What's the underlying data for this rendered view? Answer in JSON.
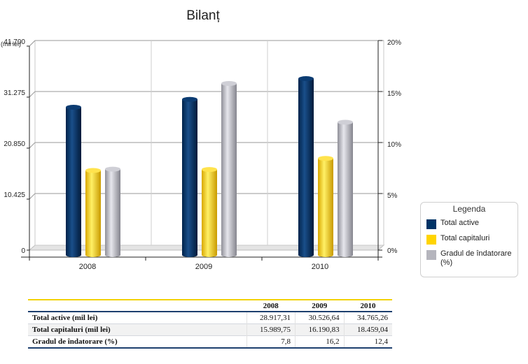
{
  "chart_data": {
    "type": "bar",
    "title": "Bilanț",
    "unit_label": "(mil lei)",
    "categories": [
      "2008",
      "2009",
      "2010"
    ],
    "y_left": {
      "ticks": [
        "0",
        "10.425",
        "20.850",
        "31.275",
        "41.700"
      ],
      "range": [
        0,
        41700
      ]
    },
    "y_right": {
      "ticks": [
        "0%",
        "5%",
        "10%",
        "15%",
        "20%"
      ],
      "range": [
        0,
        20
      ]
    },
    "grid": true,
    "legend_position": "right",
    "series": [
      {
        "name": "Total active",
        "axis": "left",
        "color": "#003366",
        "values": [
          28917.31,
          30526.64,
          34765.26
        ]
      },
      {
        "name": "Total capitaluri",
        "axis": "left",
        "color": "#ffd400",
        "values": [
          15989.75,
          16190.83,
          18459.04
        ]
      },
      {
        "name": "Gradul de îndatorare (%)",
        "axis": "right",
        "color": "#b5b5bd",
        "values": [
          7.8,
          16.2,
          12.4
        ]
      }
    ]
  },
  "legend": {
    "title": "Legenda",
    "items": [
      {
        "label": "Total active",
        "color": "#003366"
      },
      {
        "label": "Total capitaluri",
        "color": "#ffd400"
      },
      {
        "label": "Gradul de îndatorare (%)",
        "color": "#b5b5bd"
      }
    ]
  },
  "table": {
    "headers": [
      "",
      "2008",
      "2009",
      "2010"
    ],
    "rows": [
      {
        "label": "Total active (mil lei)",
        "values": [
          "28.917,31",
          "30.526,64",
          "34.765,26"
        ]
      },
      {
        "label": "Total capitaluri (mil lei)",
        "values": [
          "15.989,75",
          "16.190,83",
          "18.459,04"
        ]
      },
      {
        "label": "Gradul de îndatorare (%)",
        "values": [
          "7,8",
          "16,2",
          "12,4"
        ]
      }
    ]
  }
}
